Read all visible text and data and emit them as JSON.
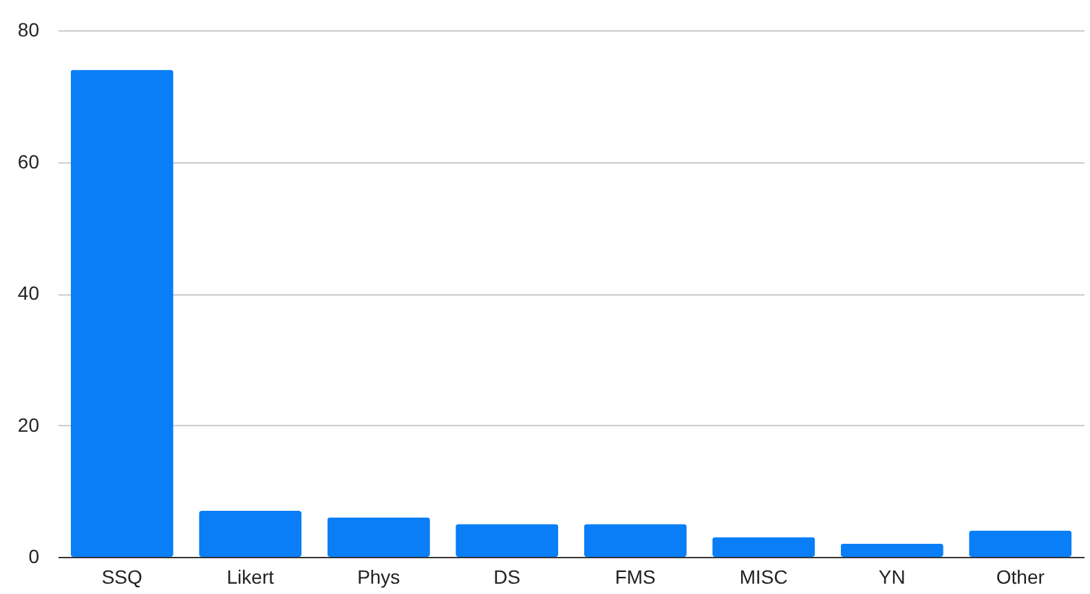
{
  "chart_data": {
    "type": "bar",
    "categories": [
      "SSQ",
      "Likert",
      "Phys",
      "DS",
      "FMS",
      "MISC",
      "YN",
      "Other"
    ],
    "values": [
      74,
      7,
      6,
      5,
      5,
      3,
      2,
      4
    ],
    "color": "#0a7ef7",
    "ylim": [
      0,
      80
    ],
    "yticks": [
      0,
      20,
      40,
      60,
      80
    ],
    "grid": "y"
  }
}
